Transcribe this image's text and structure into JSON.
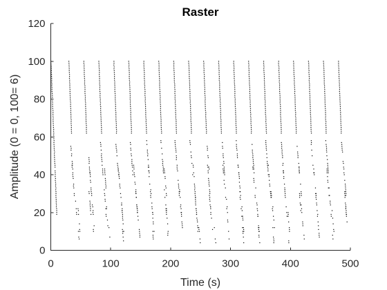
{
  "chart_data": {
    "type": "scatter",
    "title": "Raster",
    "xlabel": "Time (s)",
    "ylabel": "Amplitude (0 = 0, 100= 6)",
    "xlim": [
      0,
      500
    ],
    "ylim": [
      0,
      120
    ],
    "xticks": [
      0,
      100,
      200,
      300,
      400,
      500
    ],
    "yticks": [
      0,
      20,
      40,
      60,
      80,
      100,
      120
    ],
    "xtick_labels": [
      "0",
      "100",
      "200",
      "300",
      "400",
      "500"
    ],
    "ytick_labels": [
      "0",
      "20",
      "40",
      "60",
      "80",
      "100",
      "120"
    ],
    "grid": false,
    "box": "left-bottom",
    "marker": "point",
    "marker_color": "#000000",
    "points_description": "raster of spike times; one vertical column of dots per amplitude level (0–100), bursts recurring roughly every 25 s",
    "series": [
      {
        "x": [
          0,
          1,
          2,
          3,
          4,
          5,
          6,
          7,
          8,
          10,
          13,
          16,
          19,
          22,
          25,
          28,
          30,
          32,
          35,
          38,
          41,
          44,
          47,
          50,
          53,
          55,
          57,
          60,
          63,
          66,
          69,
          72,
          75,
          78,
          80,
          82,
          85,
          88,
          91,
          94,
          97,
          100,
          103,
          105,
          107,
          110,
          113,
          116,
          119,
          122,
          125,
          128,
          130,
          132,
          135,
          138,
          141,
          144,
          147,
          150,
          153,
          155,
          157,
          160,
          163,
          166,
          169,
          172,
          175,
          178,
          180,
          182,
          185,
          188,
          191,
          194,
          197,
          200,
          203,
          205,
          207,
          210,
          213,
          216,
          219,
          222,
          225,
          228,
          230,
          232,
          235,
          238,
          241,
          244,
          247,
          250,
          253,
          255,
          257,
          260,
          263,
          266,
          269,
          272,
          275,
          278,
          280,
          282,
          285,
          288,
          291,
          294,
          297,
          300,
          303,
          305,
          307,
          310,
          313,
          316,
          319,
          322,
          325,
          328,
          330,
          332,
          335,
          338,
          341,
          344,
          347,
          350,
          353,
          355,
          357,
          360,
          363,
          366,
          369,
          372,
          375,
          378,
          380,
          382,
          385,
          388,
          391,
          394,
          397,
          400,
          403,
          405,
          407,
          410,
          413,
          416,
          419,
          422,
          425,
          428,
          430,
          432,
          435,
          438,
          441,
          444,
          447,
          450,
          453,
          455,
          457,
          460,
          463,
          466,
          469,
          472,
          475,
          478,
          480,
          482,
          485,
          488,
          490
        ],
        "y_top": 100,
        "y_bottom": 2
      }
    ]
  }
}
